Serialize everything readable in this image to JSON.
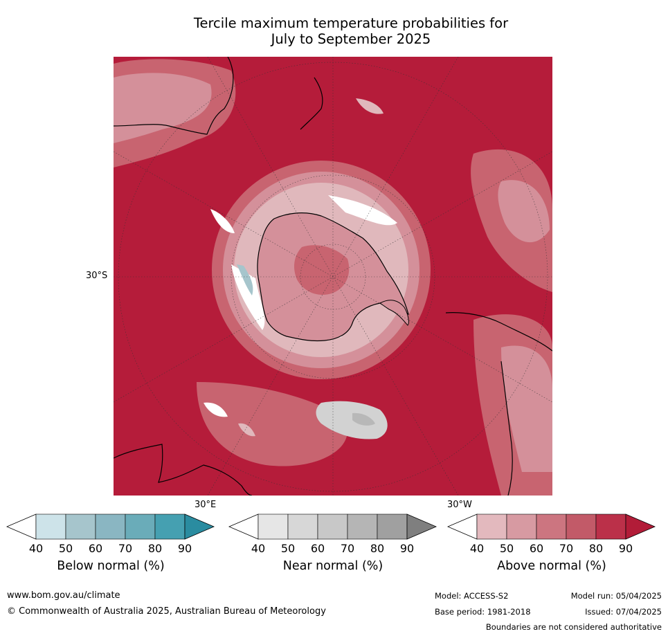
{
  "title": {
    "line1": "Tercile maximum temperature probabilities for",
    "line2": "July to September 2025"
  },
  "map": {
    "projection": "south-polar",
    "lat_label": "30°S",
    "lon_label_left": "30°E",
    "lon_label_right": "30°W",
    "colors": {
      "ocean_above": "#b51c3a",
      "above_80": "#c43c52",
      "above_70": "#c86470",
      "above_60": "#d4909a",
      "above_50": "#e0b8bc",
      "below_50": "#a6c5cc",
      "near_50": "#d2d2d2",
      "near_60": "#b8b8b8",
      "coast": "#000000",
      "grid": "#333333"
    }
  },
  "legends": [
    {
      "label": "Below normal (%)",
      "ticks": [
        "40",
        "50",
        "60",
        "70",
        "80",
        "90"
      ],
      "colors": [
        "#ffffff",
        "#cde3e9",
        "#a6c5cc",
        "#8ab6c2",
        "#6aacb9",
        "#45a0b1",
        "#2a8ca0"
      ]
    },
    {
      "label": "Near normal (%)",
      "ticks": [
        "40",
        "50",
        "60",
        "70",
        "80",
        "90"
      ],
      "colors": [
        "#ffffff",
        "#e6e6e6",
        "#d7d7d7",
        "#c8c8c8",
        "#b5b5b5",
        "#a0a0a0",
        "#7f7f7f"
      ]
    },
    {
      "label": "Above normal (%)",
      "ticks": [
        "40",
        "50",
        "60",
        "70",
        "80",
        "90"
      ],
      "colors": [
        "#ffffff",
        "#e3b9be",
        "#d79aa2",
        "#cc7580",
        "#c25a68",
        "#bb3049",
        "#b21c38"
      ]
    }
  ],
  "footer": {
    "website": "www.bom.gov.au/climate",
    "copyright": "© Commonwealth of Australia 2025, Australian Bureau of Meteorology",
    "model": "Model: ACCESS-S2",
    "model_run": "Model run: 05/04/2025",
    "base_period": "Base period: 1981-2018",
    "issued": "Issued: 07/04/2025",
    "disclaimer": "Boundaries are not considered authoritative"
  }
}
